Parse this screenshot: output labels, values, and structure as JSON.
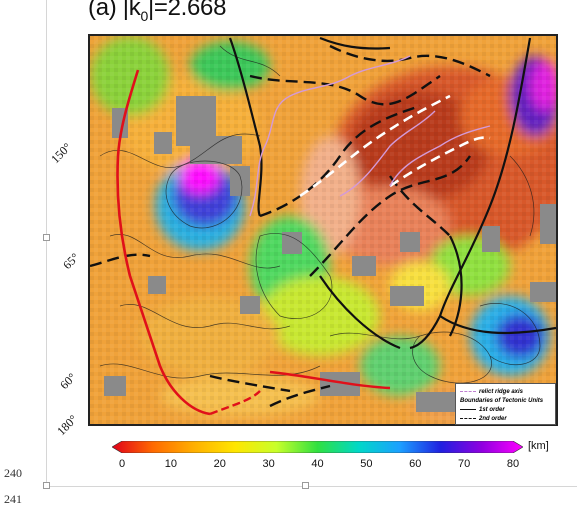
{
  "title_main": "(a) |k",
  "title_sub": "0",
  "title_value": "|=2.668",
  "line_numbers": [
    "240",
    "241"
  ],
  "lat_labels": [
    "150°",
    "65°",
    "60°",
    "180°"
  ],
  "legend": {
    "relict_label": "relict ridge axis",
    "section_title": "Boundaries of Tectonic Units",
    "first_order": "1st order",
    "second_order": "2nd order",
    "relict_color": "#c080d0"
  },
  "colorbar": {
    "ticks": [
      "0",
      "10",
      "20",
      "30",
      "40",
      "50",
      "60",
      "70",
      "80"
    ],
    "unit": "[km]",
    "min": 0,
    "max": 80,
    "colors": [
      "#e0001a",
      "#ff6a00",
      "#ffb000",
      "#ffe600",
      "#c8ff2a",
      "#30e040",
      "#00d8c8",
      "#1ca0ff",
      "#2020e0",
      "#9000e0",
      "#ff00ff"
    ]
  }
}
